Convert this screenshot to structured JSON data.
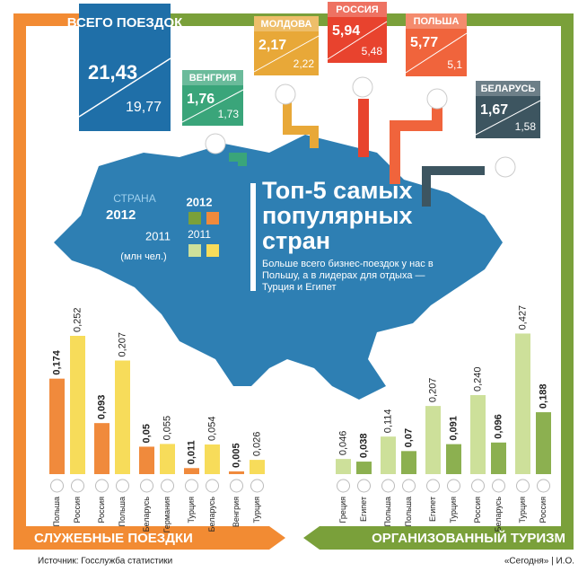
{
  "totals": {
    "label": "ВСЕГО ПОЕЗДОК",
    "v2012": "21,43",
    "v2011": "19,77"
  },
  "countries": [
    {
      "name": "ВЕНГРИЯ",
      "v2012": "1,76",
      "v2011": "1,73"
    },
    {
      "name": "МОЛДОВА",
      "v2012": "2,17",
      "v2011": "2,22"
    },
    {
      "name": "РОССИЯ",
      "v2012": "5,94",
      "v2011": "5,48"
    },
    {
      "name": "ПОЛЬША",
      "v2012": "5,77",
      "v2011": "5,1"
    },
    {
      "name": "БЕЛАРУСЬ",
      "v2012": "1,67",
      "v2011": "1,58"
    }
  ],
  "legend": {
    "country": "СТРАНА",
    "year_top": "2012",
    "year_bottom": "2011",
    "unit": "(млн чел.)",
    "color_top": "2012",
    "color_bottom": "2011"
  },
  "headline": {
    "title": "Топ-5 самых популярных стран",
    "text": "Больше всего бизнес-поездок у нас в Польшу, а в лидерах для отдыха — Турция и Египет"
  },
  "footer": {
    "source": "Источник: Госслужба статистики",
    "credit": "«Сегодня» | И.О."
  },
  "chart_data": [
    {
      "type": "bar",
      "title": "СЛУЖЕБНЫЕ ПОЕЗДКИ",
      "categories": [
        "Польша",
        "Россия",
        "Россия",
        "Польша",
        "Беларусь",
        "Германия",
        "Турция",
        "Беларусь",
        "Венгрия",
        "Турция"
      ],
      "values": [
        0.174,
        0.252,
        0.093,
        0.207,
        0.05,
        0.055,
        0.011,
        0.054,
        0.005,
        0.026
      ],
      "value_labels": [
        "0,174",
        "0,252",
        "0,093",
        "0,207",
        "0,05",
        "0,055",
        "0,011",
        "0,054",
        "0,005",
        "0,026"
      ],
      "colors": [
        "#f08a3c",
        "#f7dc5a",
        "#f08a3c",
        "#f7dc5a",
        "#f08a3c",
        "#f7dc5a",
        "#f08a3c",
        "#f7dc5a",
        "#f08a3c",
        "#f7dc5a"
      ],
      "ylim": [
        0,
        0.27
      ]
    },
    {
      "type": "bar",
      "title": "ОРГАНИЗОВАННЫЙ ТУРИЗМ",
      "categories": [
        "Греция",
        "Египет",
        "Польша",
        "Польша",
        "Египет",
        "Турция",
        "Россия",
        "Беларусь",
        "Турция",
        "Россия"
      ],
      "values": [
        0.046,
        0.038,
        0.114,
        0.07,
        0.207,
        0.091,
        0.24,
        0.096,
        0.427,
        0.188
      ],
      "value_labels": [
        "0,046",
        "0,038",
        "0,114",
        "0,07",
        "0,207",
        "0,091",
        "0,240",
        "0,096",
        "0,427",
        "0,188"
      ],
      "colors": [
        "#cde09a",
        "#8cb050",
        "#cde09a",
        "#8cb050",
        "#cde09a",
        "#8cb050",
        "#cde09a",
        "#8cb050",
        "#cde09a",
        "#8cb050"
      ],
      "ylim": [
        0,
        0.45
      ]
    }
  ]
}
